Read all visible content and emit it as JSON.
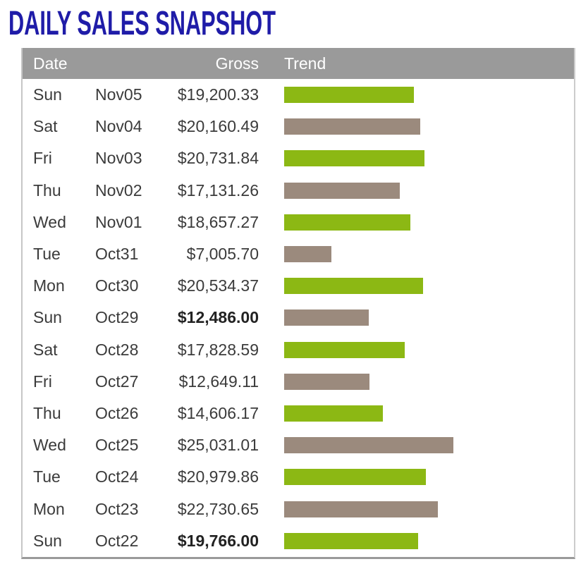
{
  "page": {
    "title": "DAILY SALES SNAPSHOT"
  },
  "colors": {
    "title": "#1f1ca8",
    "header_bg": "#9a9a9a",
    "row_text": "#3b3b3b",
    "bar_green": "#8cb814",
    "bar_taupe": "#9b8a7d"
  },
  "table": {
    "headers": {
      "date": "Date",
      "gross": "Gross",
      "trend": "Trend"
    },
    "rows": [
      {
        "day": "Sun",
        "date": "Nov05",
        "gross": "$19,200.33",
        "value": 19200.33,
        "color": "green",
        "bold": false
      },
      {
        "day": "Sat",
        "date": "Nov04",
        "gross": "$20,160.49",
        "value": 20160.49,
        "color": "taupe",
        "bold": false
      },
      {
        "day": "Fri",
        "date": "Nov03",
        "gross": "$20,731.84",
        "value": 20731.84,
        "color": "green",
        "bold": false
      },
      {
        "day": "Thu",
        "date": "Nov02",
        "gross": "$17,131.26",
        "value": 17131.26,
        "color": "taupe",
        "bold": false
      },
      {
        "day": "Wed",
        "date": "Nov01",
        "gross": "$18,657.27",
        "value": 18657.27,
        "color": "green",
        "bold": false
      },
      {
        "day": "Tue",
        "date": "Oct31",
        "gross": "$7,005.70",
        "value": 7005.7,
        "color": "taupe",
        "bold": false
      },
      {
        "day": "Mon",
        "date": "Oct30",
        "gross": "$20,534.37",
        "value": 20534.37,
        "color": "green",
        "bold": false
      },
      {
        "day": "Sun",
        "date": "Oct29",
        "gross": "$12,486.00",
        "value": 12486.0,
        "color": "taupe",
        "bold": true
      },
      {
        "day": "Sat",
        "date": "Oct28",
        "gross": "$17,828.59",
        "value": 17828.59,
        "color": "green",
        "bold": false
      },
      {
        "day": "Fri",
        "date": "Oct27",
        "gross": "$12,649.11",
        "value": 12649.11,
        "color": "taupe",
        "bold": false
      },
      {
        "day": "Thu",
        "date": "Oct26",
        "gross": "$14,606.17",
        "value": 14606.17,
        "color": "green",
        "bold": false
      },
      {
        "day": "Wed",
        "date": "Oct25",
        "gross": "$25,031.01",
        "value": 25031.01,
        "color": "taupe",
        "bold": false
      },
      {
        "day": "Tue",
        "date": "Oct24",
        "gross": "$20,979.86",
        "value": 20979.86,
        "color": "green",
        "bold": false
      },
      {
        "day": "Mon",
        "date": "Oct23",
        "gross": "$22,730.65",
        "value": 22730.65,
        "color": "taupe",
        "bold": false
      },
      {
        "day": "Sun",
        "date": "Oct22",
        "gross": "$19,766.00",
        "value": 19766.0,
        "color": "green",
        "bold": true
      }
    ]
  },
  "chart_data": {
    "type": "bar",
    "orientation": "horizontal",
    "title": "DAILY SALES SNAPSHOT",
    "categories": [
      "Sun Nov05",
      "Sat Nov04",
      "Fri Nov03",
      "Thu Nov02",
      "Wed Nov01",
      "Tue Oct31",
      "Mon Oct30",
      "Sun Oct29",
      "Sat Oct28",
      "Fri Oct27",
      "Thu Oct26",
      "Wed Oct25",
      "Tue Oct24",
      "Mon Oct23",
      "Sun Oct22"
    ],
    "values": [
      19200.33,
      20160.49,
      20731.84,
      17131.26,
      18657.27,
      7005.7,
      20534.37,
      12486.0,
      17828.59,
      12649.11,
      14606.17,
      25031.01,
      20979.86,
      22730.65,
      19766.0
    ],
    "xlabel": "Gross ($)",
    "ylabel": "Date",
    "xlim": [
      0,
      25031.01
    ],
    "grid": false,
    "legend": false,
    "bar_color_pattern": [
      "#8cb814",
      "#9b8a7d"
    ]
  }
}
